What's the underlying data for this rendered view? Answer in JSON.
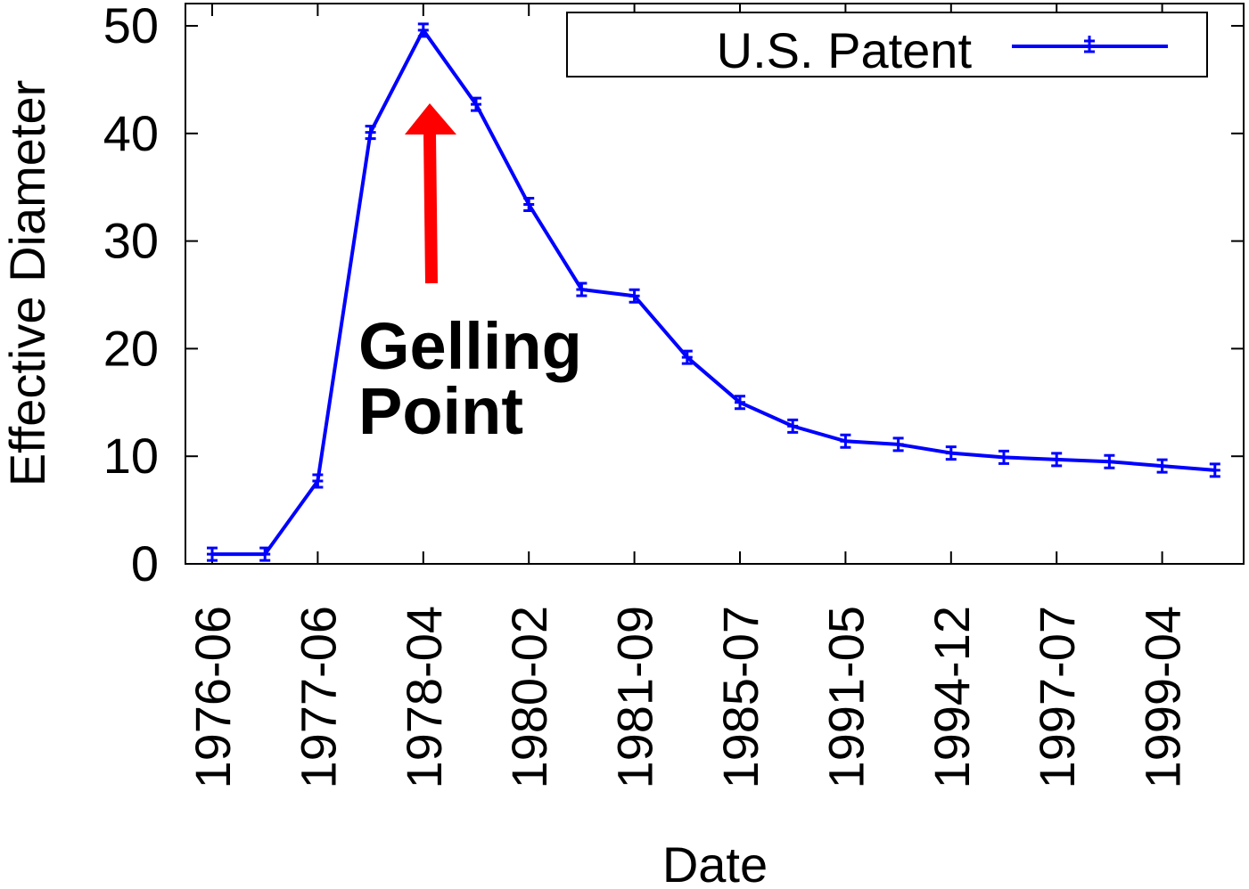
{
  "chart_data": {
    "type": "line",
    "xlabel": "Date",
    "ylabel": "Effective Diameter",
    "ylim": [
      0,
      50
    ],
    "yticks": [
      0,
      10,
      20,
      30,
      40,
      50
    ],
    "x_tick_labels": [
      "1976-06",
      "1977-06",
      "1978-04",
      "1980-02",
      "1981-09",
      "1985-07",
      "1991-05",
      "1994-12",
      "1997-07",
      "1999-04"
    ],
    "grid": false,
    "legend": "top-right",
    "series": [
      {
        "name": "U.S. Patent",
        "color": "#0000ff",
        "values": [
          0.9,
          0.9,
          7.7,
          40.1,
          49.6,
          42.7,
          33.4,
          25.5,
          24.9,
          19.2,
          15.0,
          12.8,
          11.4,
          11.1,
          10.3,
          9.9,
          9.7,
          9.5,
          9.1,
          8.7
        ]
      }
    ],
    "annotation": {
      "line1": "Gelling",
      "line2": "Point",
      "arrow_color": "#ff0000"
    }
  }
}
